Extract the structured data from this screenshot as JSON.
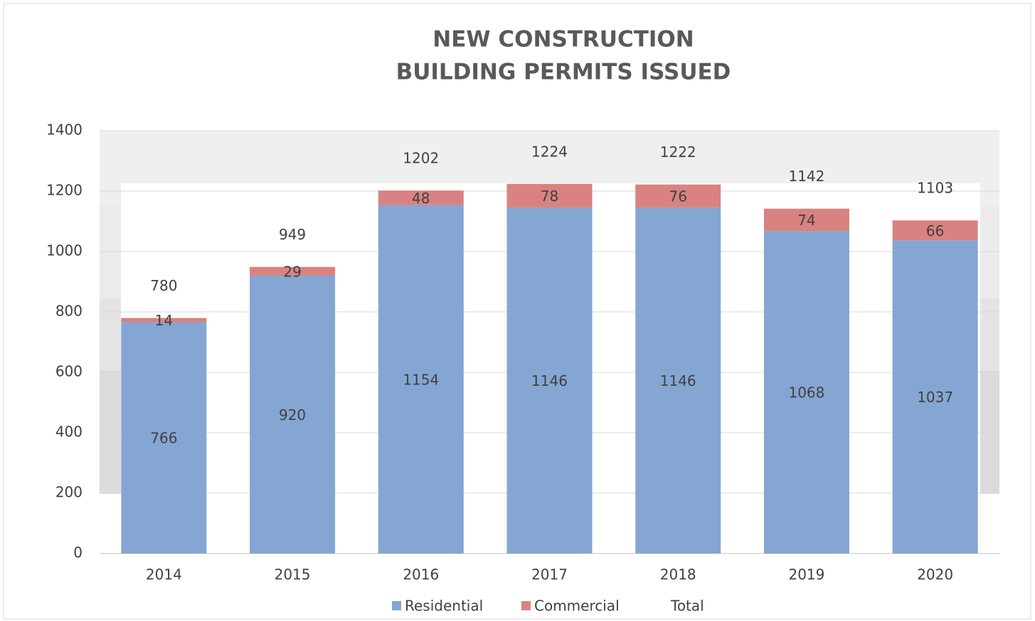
{
  "chart_data": {
    "type": "stacked_bar",
    "title": [
      "NEW CONSTRUCTION",
      "BUILDING PERMITS ISSUED"
    ],
    "categories": [
      "2014",
      "2015",
      "2016",
      "2017",
      "2018",
      "2019",
      "2020"
    ],
    "series": [
      {
        "name": "Residential",
        "color": "#85a6d2",
        "values": [
          766,
          920,
          1154,
          1146,
          1146,
          1068,
          1037
        ]
      },
      {
        "name": "Commercial",
        "color": "#d98282",
        "values": [
          14,
          29,
          48,
          78,
          76,
          74,
          66
        ]
      },
      {
        "name": "Total",
        "values": [
          780,
          949,
          1202,
          1224,
          1222,
          1142,
          1103
        ]
      }
    ],
    "ylim": [
      0,
      1400
    ],
    "yticks": [
      0,
      200,
      400,
      600,
      800,
      1000,
      1200,
      1400
    ],
    "grid": true,
    "legend": "bottom"
  }
}
